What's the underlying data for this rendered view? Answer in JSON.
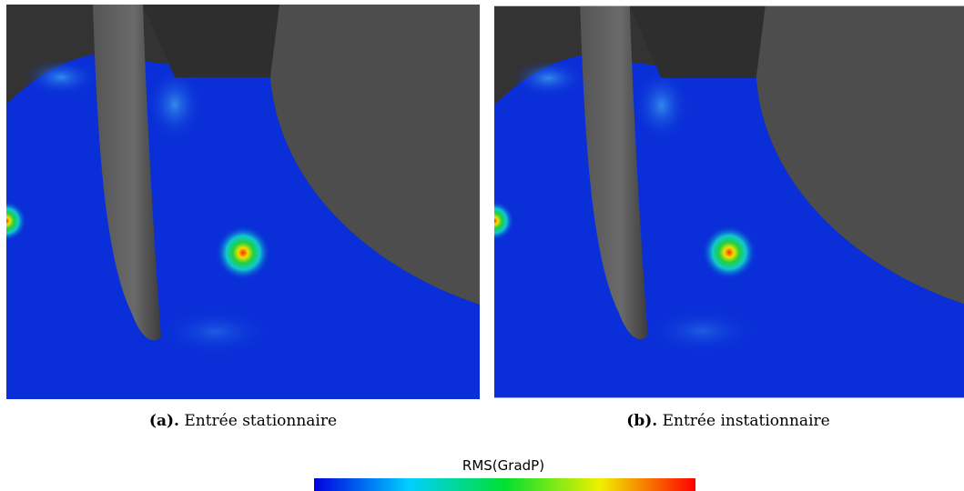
{
  "panels": [
    {
      "label": "(a).",
      "caption": "Entrée stationnaire"
    },
    {
      "label": "(b).",
      "caption": "Entrée instationnaire"
    }
  ],
  "colorbar": {
    "title": "RMS(GradP)"
  }
}
